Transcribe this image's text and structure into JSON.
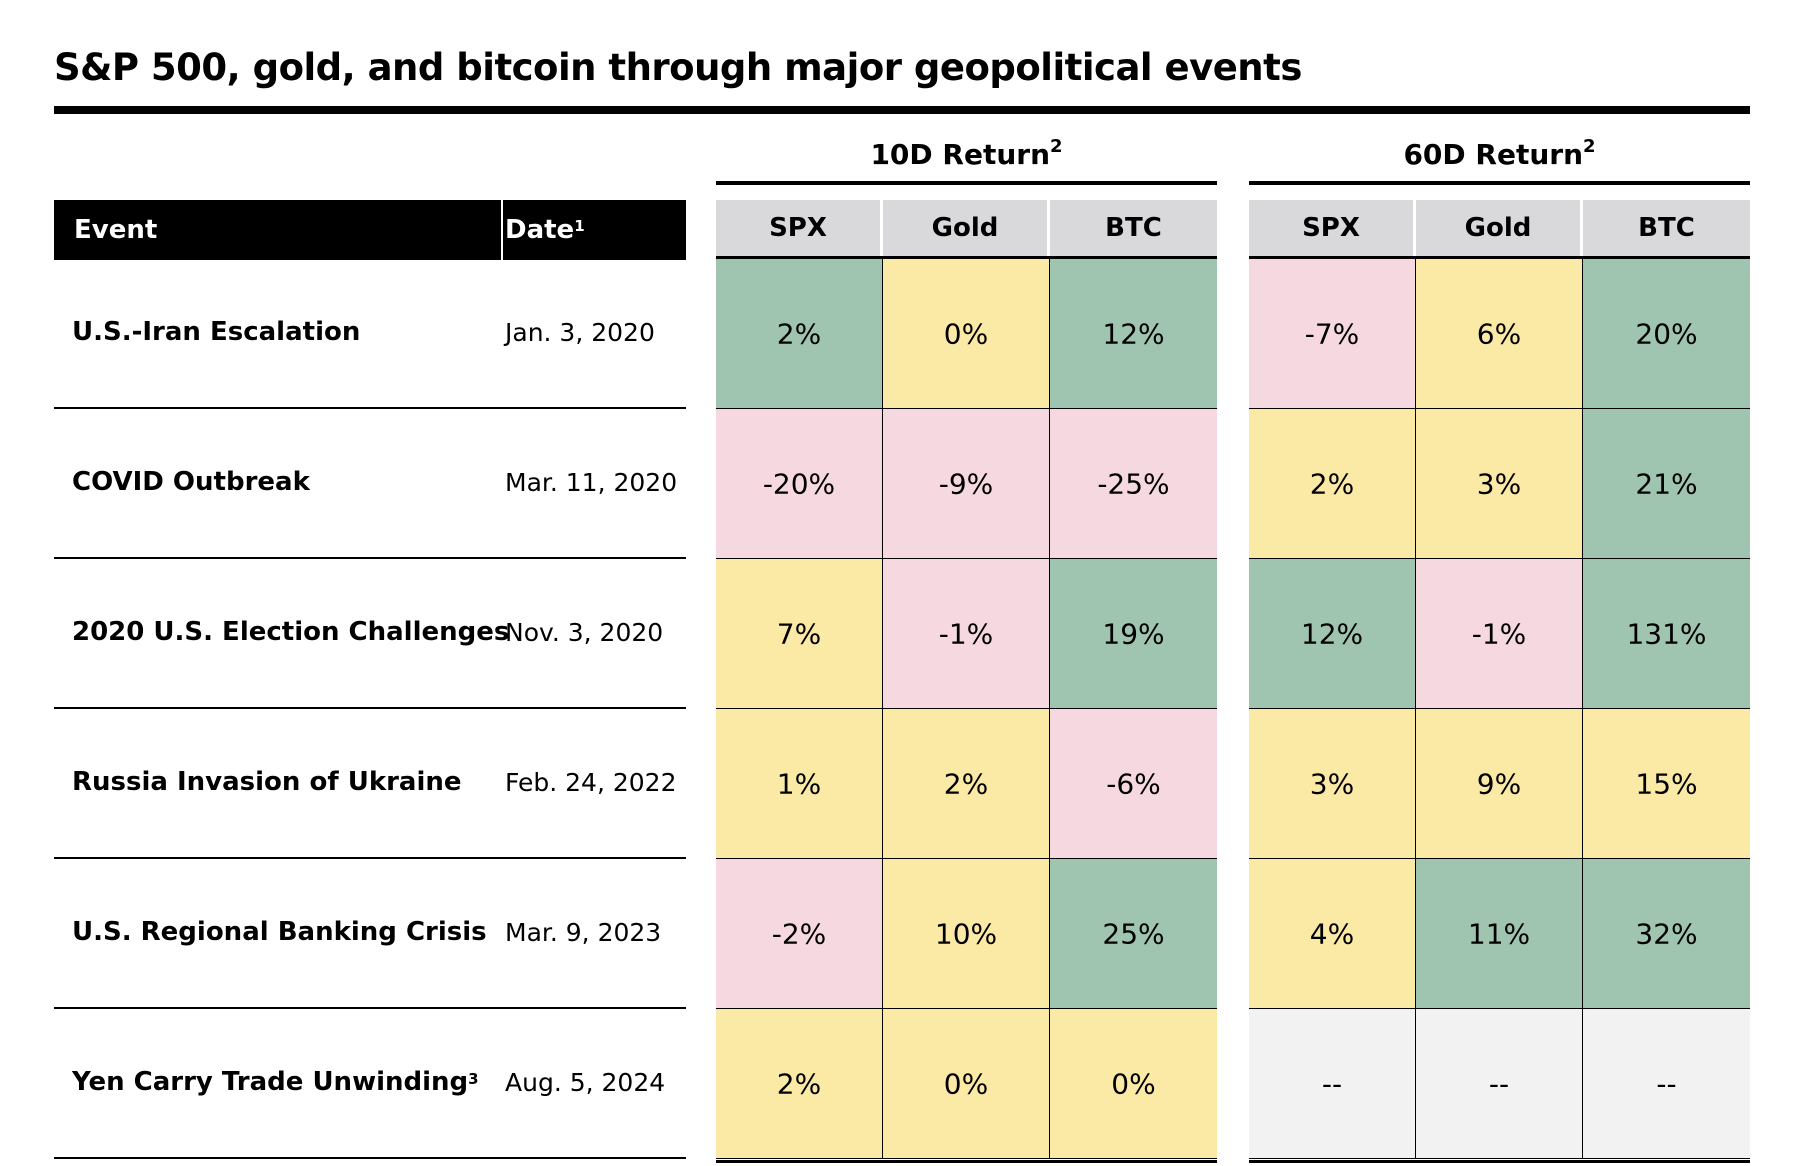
{
  "title": "S&P 500, gold, and bitcoin through major geopolitical events",
  "left_headers": {
    "event": "Event",
    "date": "Date",
    "date_footnote": "1"
  },
  "groups": [
    {
      "label": "10D Return",
      "footnote": "2"
    },
    {
      "label": "60D Return",
      "footnote": "2"
    }
  ],
  "columns": [
    "SPX",
    "Gold",
    "BTC"
  ],
  "colors": {
    "positive": "#9fc5b0",
    "neutral": "#fbe9a6",
    "negative": "#f6d9e0",
    "missing": "#f2f2f2",
    "header_bg": "#d9d9dc"
  },
  "chart_data": {
    "type": "table",
    "title": "S&P 500, gold, and bitcoin through major geopolitical events",
    "columns": [
      "Event",
      "Date",
      "10D Return SPX",
      "10D Return Gold",
      "10D Return BTC",
      "60D Return SPX",
      "60D Return Gold",
      "60D Return BTC"
    ],
    "rows": [
      {
        "event": "U.S.-Iran Escalation",
        "footnote": "",
        "date": "Jan. 3, 2020",
        "ten_day": [
          "2%",
          "0%",
          "12%"
        ],
        "sixty_day": [
          "-7%",
          "6%",
          "20%"
        ],
        "ten_day_tone": [
          "positive",
          "neutral",
          "positive"
        ],
        "sixty_day_tone": [
          "negative",
          "neutral",
          "positive"
        ]
      },
      {
        "event": "COVID Outbreak",
        "footnote": "",
        "date": "Mar. 11, 2020",
        "ten_day": [
          "-20%",
          "-9%",
          "-25%"
        ],
        "sixty_day": [
          "2%",
          "3%",
          "21%"
        ],
        "ten_day_tone": [
          "negative",
          "negative",
          "negative"
        ],
        "sixty_day_tone": [
          "neutral",
          "neutral",
          "positive"
        ]
      },
      {
        "event": "2020 U.S. Election Challenges",
        "footnote": "",
        "date": "Nov. 3, 2020",
        "ten_day": [
          "7%",
          "-1%",
          "19%"
        ],
        "sixty_day": [
          "12%",
          "-1%",
          "131%"
        ],
        "ten_day_tone": [
          "neutral",
          "negative",
          "positive"
        ],
        "sixty_day_tone": [
          "positive",
          "negative",
          "positive"
        ]
      },
      {
        "event": "Russia Invasion of Ukraine",
        "footnote": "",
        "date": "Feb. 24, 2022",
        "ten_day": [
          "1%",
          "2%",
          "-6%"
        ],
        "sixty_day": [
          "3%",
          "9%",
          "15%"
        ],
        "ten_day_tone": [
          "neutral",
          "neutral",
          "negative"
        ],
        "sixty_day_tone": [
          "neutral",
          "neutral",
          "neutral"
        ]
      },
      {
        "event": "U.S. Regional Banking Crisis",
        "footnote": "",
        "date": "Mar. 9, 2023",
        "ten_day": [
          "-2%",
          "10%",
          "25%"
        ],
        "sixty_day": [
          "4%",
          "11%",
          "32%"
        ],
        "ten_day_tone": [
          "negative",
          "neutral",
          "positive"
        ],
        "sixty_day_tone": [
          "neutral",
          "positive",
          "positive"
        ]
      },
      {
        "event": "Yen Carry Trade Unwinding",
        "footnote": "3",
        "date": "Aug. 5, 2024",
        "ten_day": [
          "2%",
          "0%",
          "0%"
        ],
        "sixty_day": [
          "--",
          "--",
          "--"
        ],
        "ten_day_tone": [
          "neutral",
          "neutral",
          "neutral"
        ],
        "sixty_day_tone": [
          "missing",
          "missing",
          "missing"
        ]
      }
    ]
  }
}
